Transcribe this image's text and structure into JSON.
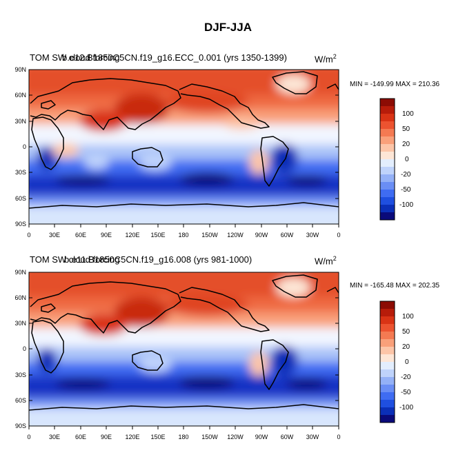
{
  "title": "DJF-JJA",
  "colors": [
    "#0a0a7a",
    "#0b2fb8",
    "#1f4fe0",
    "#3f6cf2",
    "#6a8ef5",
    "#94b1f7",
    "#bfd3fb",
    "#e3eefd",
    "#fde6d6",
    "#fcc5a8",
    "#f9a07a",
    "#f47a52",
    "#ec5330",
    "#d93315",
    "#b71c0a",
    "#8c0c04"
  ],
  "colorbar_labels": [
    "100",
    "50",
    "20",
    "0",
    "-20",
    "-50",
    "-100"
  ],
  "x_labels": [
    "0",
    "30E",
    "60E",
    "90E",
    "120E",
    "150E",
    "180",
    "150W",
    "120W",
    "90W",
    "60W",
    "30W",
    "0"
  ],
  "y_labels": [
    "90N",
    "60N",
    "30N",
    "0",
    "30S",
    "60S",
    "90S"
  ],
  "units": "W/m",
  "units_sup": "2",
  "panels": [
    {
      "label_overlap": "TOM SW cloud forcing",
      "label_behind": "b.e12.B1850C5CN.f19_g16.ECC_0.001 (yrs 1350-1399)",
      "minmax": "MIN = -149.99 MAX = 210.36"
    },
    {
      "label_overlap": "TOM SW cloud forcing",
      "label_behind": "b.e11.B1850C5CN.f19_g16.008 (yrs 981-1000)",
      "minmax": "MIN = -165.48 MAX = 202.35"
    }
  ]
}
